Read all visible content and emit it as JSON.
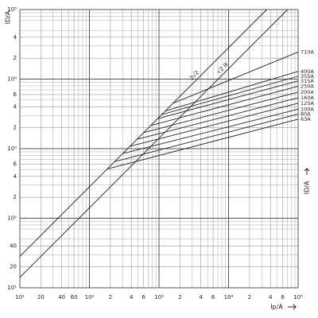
{
  "chart_data": {
    "type": "line",
    "y_label": "ID/A",
    "right_label": "ID/A",
    "x_label": "Ip/A",
    "log_x": true,
    "log_y": true,
    "grid": true,
    "color": "#222222",
    "xlim": [
      10,
      100000
    ],
    "ylim": [
      10,
      100000
    ],
    "xticks": [
      {
        "value": 10,
        "label": "10¹"
      },
      20,
      40,
      60,
      {
        "value": 100,
        "label": "10²"
      },
      {
        "value": 200,
        "label": "2"
      },
      {
        "value": 400,
        "label": "4"
      },
      {
        "value": 600,
        "label": "6"
      },
      {
        "value": 1000,
        "label": "10³"
      },
      {
        "value": 2000,
        "label": "2"
      },
      {
        "value": 4000,
        "label": "4"
      },
      {
        "value": 6000,
        "label": "6"
      },
      {
        "value": 10000,
        "label": "10⁴"
      },
      {
        "value": 20000,
        "label": "2"
      },
      {
        "value": 40000,
        "label": "4"
      },
      {
        "value": 60000,
        "label": "6"
      },
      {
        "value": 100000,
        "label": "10⁵"
      }
    ],
    "yticks": [
      {
        "value": 10,
        "label": "10¹"
      },
      20,
      40,
      {
        "value": 100,
        "label": "10²"
      },
      {
        "value": 200,
        "label": "2"
      },
      {
        "value": 400,
        "label": "4"
      },
      {
        "value": 600,
        "label": "6"
      },
      {
        "value": 1000,
        "label": "10³"
      },
      {
        "value": 2000,
        "label": "2"
      },
      {
        "value": 4000,
        "label": "4"
      },
      {
        "value": 6000,
        "label": "6"
      },
      {
        "value": 10000,
        "label": "10⁴"
      },
      {
        "value": 20000,
        "label": "2"
      },
      {
        "value": 40000,
        "label": "4"
      },
      {
        "value": 100000,
        "label": "10⁵"
      }
    ],
    "minor_grid": [
      30,
      50,
      70,
      80,
      90,
      300,
      500,
      700,
      800,
      900,
      3000,
      5000,
      7000,
      8000,
      9000,
      30000,
      50000,
      70000,
      80000,
      90000
    ],
    "major_grid": [
      10,
      100,
      1000,
      10000,
      100000
    ],
    "series": [
      {
        "name": "2√2",
        "x": [
          10,
          35355
        ],
        "values": [
          28.3,
          100000
        ]
      },
      {
        "name": "√2 Ik",
        "x": [
          10,
          70711
        ],
        "values": [
          14.1,
          100000
        ]
      },
      {
        "name": "710A",
        "x": [
          1600,
          100000
        ],
        "values": [
          4500,
          24500
        ]
      },
      {
        "name": "400A",
        "x": [
          1250,
          100000
        ],
        "values": [
          3500,
          12900
        ]
      },
      {
        "name": "355A",
        "x": [
          1100,
          100000
        ],
        "values": [
          3100,
          11000
        ]
      },
      {
        "name": "315A",
        "x": [
          950,
          100000
        ],
        "values": [
          2700,
          9400
        ]
      },
      {
        "name": "250A",
        "x": [
          760,
          100000
        ],
        "values": [
          2150,
          7900
        ]
      },
      {
        "name": "200A",
        "x": [
          600,
          100000
        ],
        "values": [
          1700,
          6500
        ]
      },
      {
        "name": "160A",
        "x": [
          480,
          100000
        ],
        "values": [
          1360,
          5400
        ]
      },
      {
        "name": "125A",
        "x": [
          380,
          100000
        ],
        "values": [
          1080,
          4500
        ]
      },
      {
        "name": "100A",
        "x": [
          300,
          100000
        ],
        "values": [
          850,
          3700
        ]
      },
      {
        "name": "80A",
        "x": [
          230,
          100000
        ],
        "values": [
          650,
          3150
        ]
      },
      {
        "name": "63A",
        "x": [
          180,
          100000
        ],
        "values": [
          510,
          2650
        ]
      }
    ]
  }
}
